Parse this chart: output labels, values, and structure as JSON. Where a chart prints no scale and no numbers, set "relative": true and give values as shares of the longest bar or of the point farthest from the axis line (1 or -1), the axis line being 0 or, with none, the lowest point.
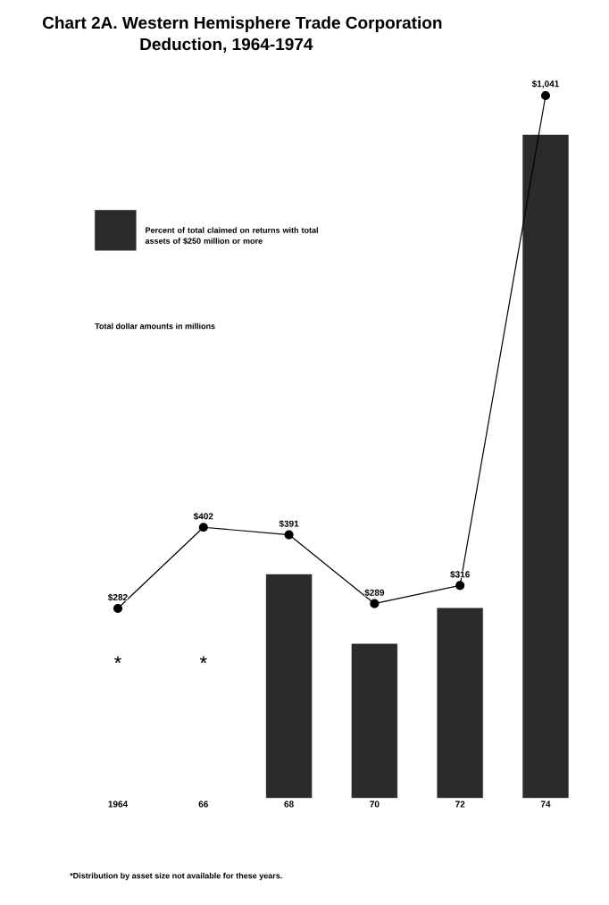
{
  "chart_data": [
    {
      "type": "bar",
      "title": "Chart 2A. Western Hemisphere Trade Corporation Deduction, 1964-1974",
      "categories": [
        "1964",
        "66",
        "68",
        "70",
        "72",
        "74"
      ],
      "relative": true,
      "legend": "top left",
      "series": [
        {
          "name": "Percent of total claimed on returns with total assets of $250 million or more",
          "color": "#2b2b2b",
          "values": [
            null,
            null,
            0.337,
            0.232,
            0.286,
            1
          ]
        }
      ],
      "annotations": [
        "*",
        "*",
        "*Distribution by asset size not available for these years."
      ]
    },
    {
      "type": "line",
      "categories": [
        "1964",
        "66",
        "68",
        "70",
        "72",
        "74"
      ],
      "tick_labels": false,
      "marker": "circle",
      "color": "#000000",
      "values": [
        282,
        402,
        391,
        289,
        316,
        1041
      ],
      "value_labels": [
        "$282",
        "$402",
        "$391",
        "$289",
        "$316",
        "$1,041"
      ],
      "annotations": [
        "Total dollar amounts in millions"
      ]
    }
  ]
}
